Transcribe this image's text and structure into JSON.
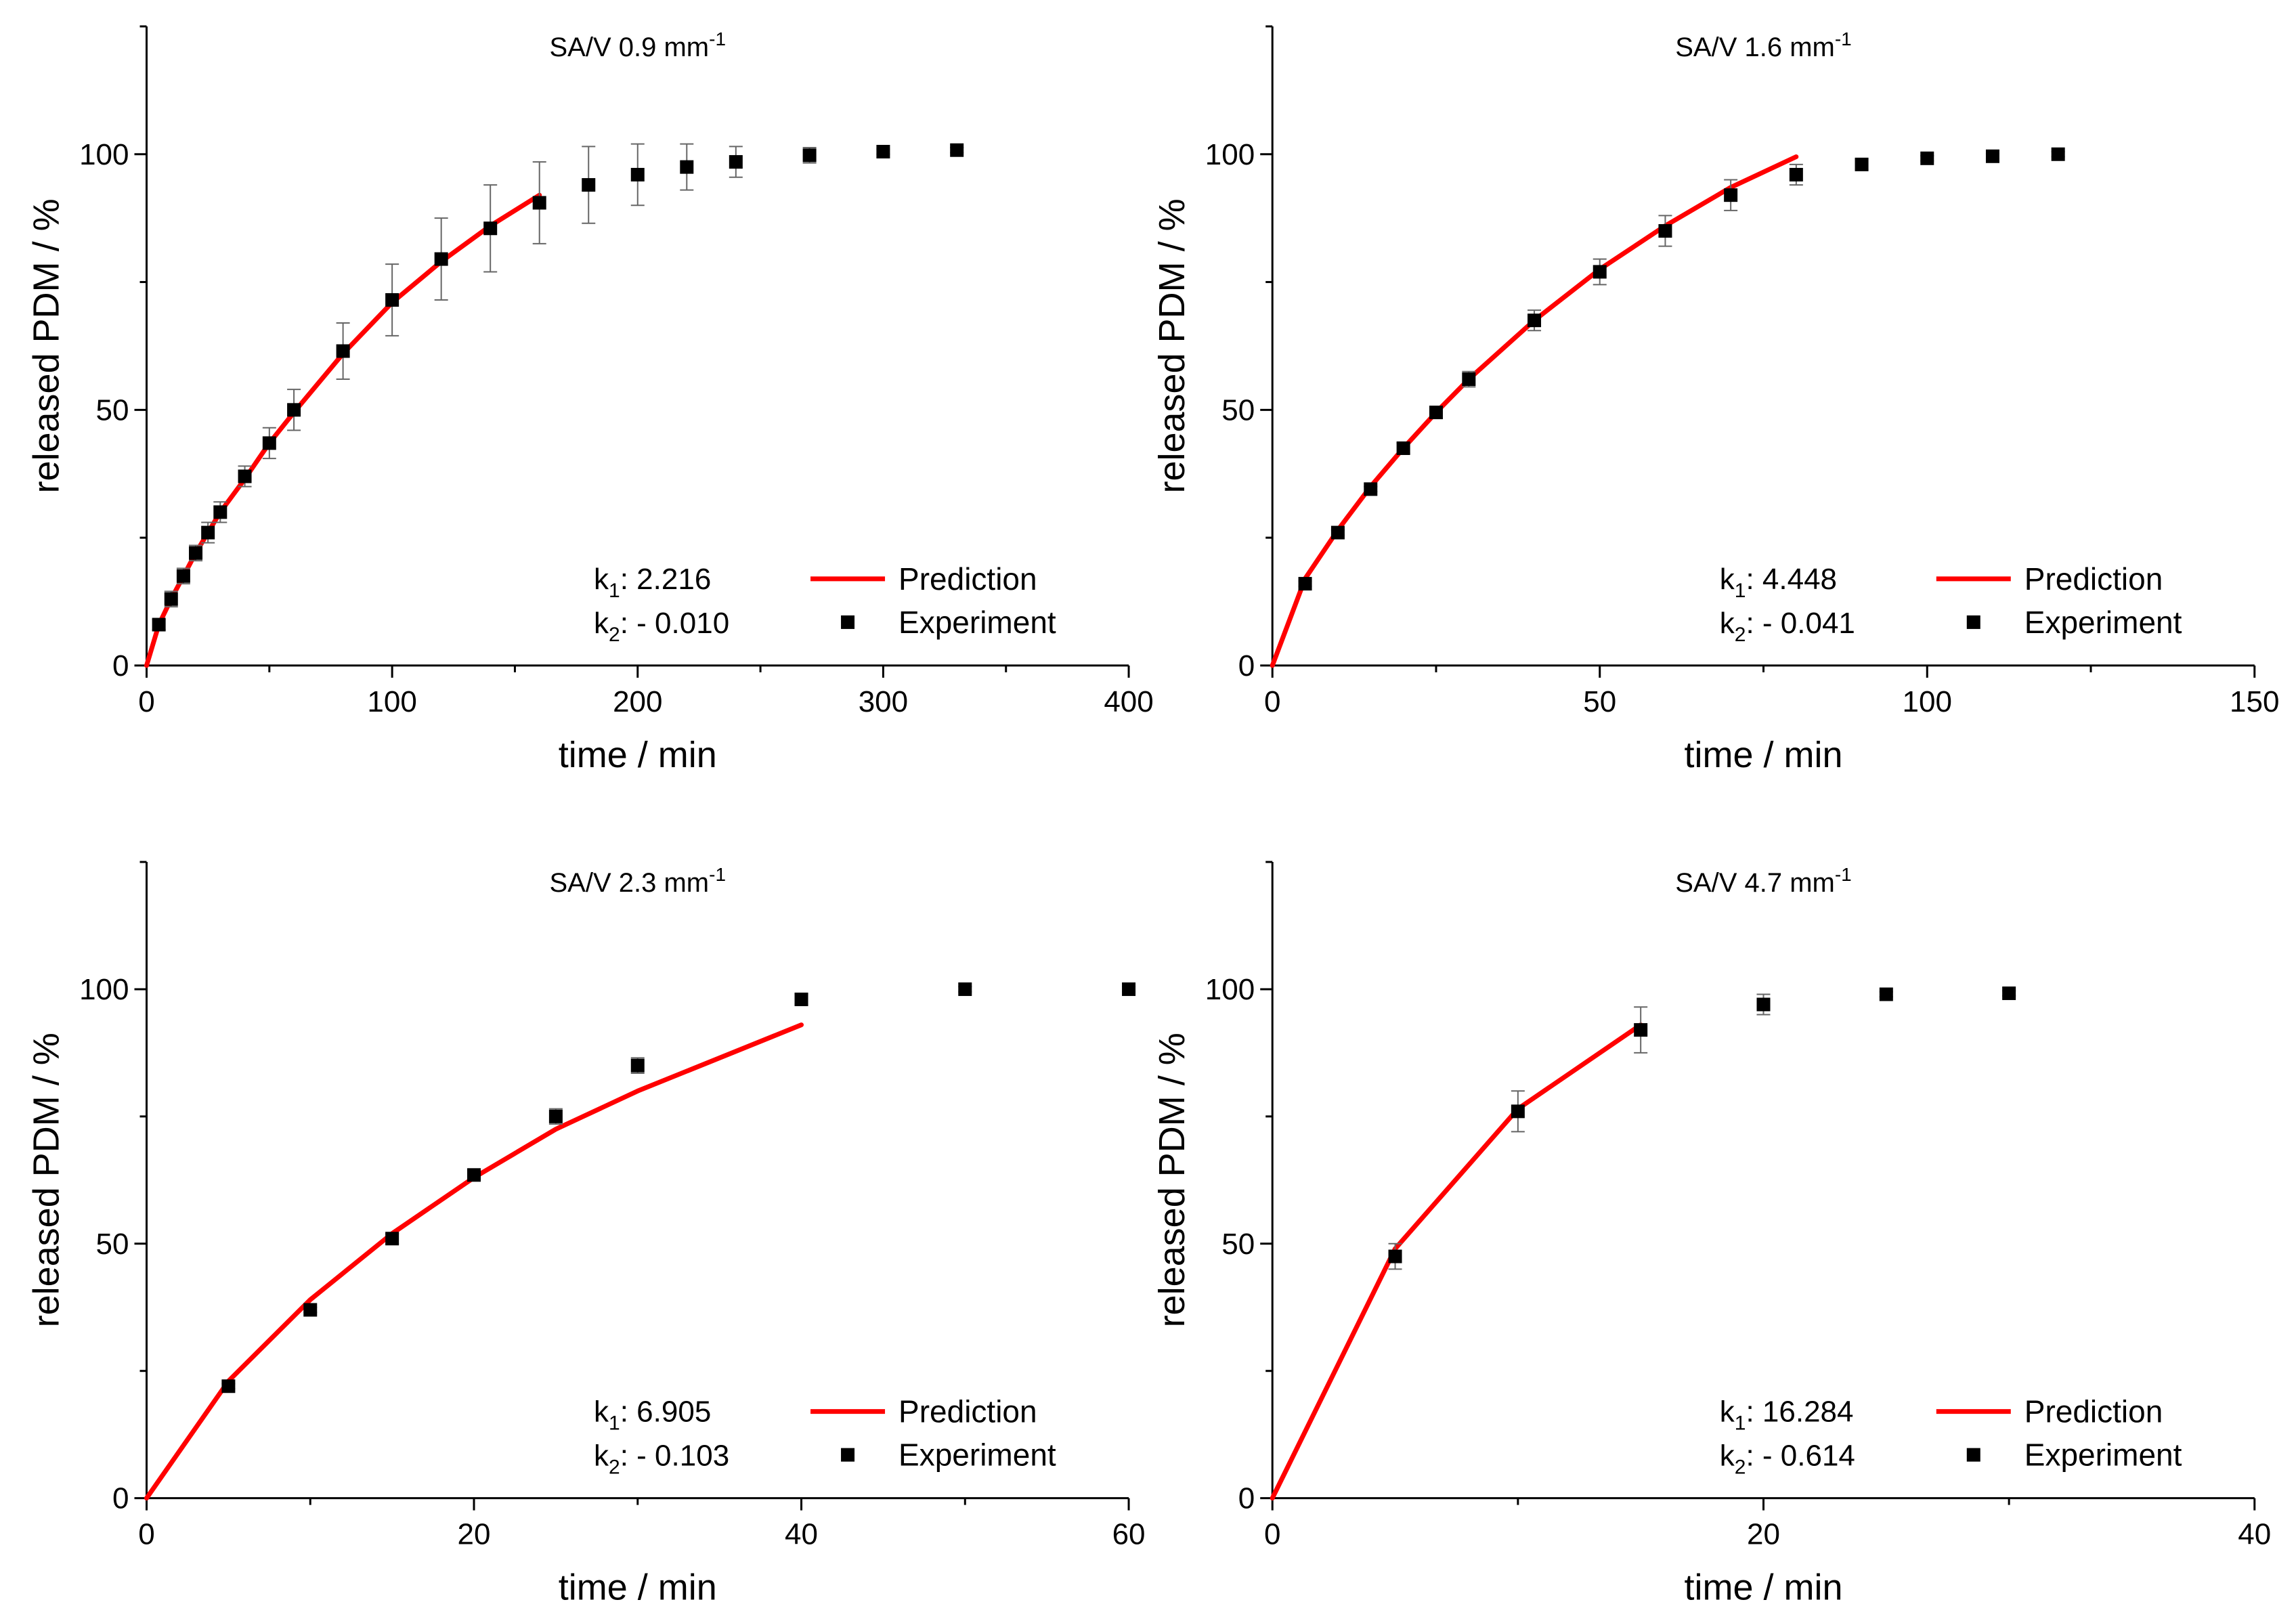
{
  "chart_data": [
    {
      "type": "scatter",
      "title": "SA/V 0.9 mm",
      "title_superscript": "-1",
      "xlabel": "time / min",
      "ylabel": "released PDM / %",
      "xlim": [
        0,
        400
      ],
      "ylim": [
        0,
        125
      ],
      "xticks": [
        0,
        100,
        200,
        300,
        400
      ],
      "xtick_labels": [
        "0",
        "100",
        "200",
        "300",
        "400"
      ],
      "yticks": [
        0,
        50,
        100
      ],
      "ytick_labels": [
        "0",
        "50",
        "100"
      ],
      "legend_position": "bottom-right",
      "legend": [
        {
          "label": "Prediction",
          "symbol": "line",
          "color": "#ff0000"
        },
        {
          "label": "Experiment",
          "symbol": "square",
          "color": "#000000"
        }
      ],
      "annotations": [
        {
          "label": "k",
          "sub": "1",
          "value": ": 2.216"
        },
        {
          "label": "k",
          "sub": "2",
          "value": ": - 0.010"
        }
      ],
      "series": [
        {
          "name": "Prediction",
          "kind": "line",
          "color": "#ff0000",
          "x": [
            0,
            5,
            10,
            15,
            20,
            25,
            30,
            40,
            50,
            60,
            80,
            100,
            120,
            140,
            160
          ],
          "y": [
            0,
            8,
            13,
            17.5,
            22,
            26,
            30,
            36.5,
            43.5,
            49.5,
            61,
            71,
            79,
            86,
            92
          ]
        },
        {
          "name": "Experiment",
          "kind": "markers",
          "color": "#000000",
          "x": [
            5,
            10,
            15,
            20,
            25,
            30,
            40,
            50,
            60,
            80,
            100,
            120,
            140,
            160,
            180,
            200,
            220,
            240,
            270,
            300,
            330
          ],
          "y": [
            8,
            13,
            17.5,
            22,
            26,
            30,
            37,
            43.5,
            50,
            61.5,
            71.5,
            79.5,
            85.5,
            90.5,
            94,
            96,
            97.5,
            98.5,
            99.8,
            100.5,
            100.8
          ],
          "err": [
            1,
            1.5,
            1.5,
            1.5,
            2,
            2,
            2,
            3,
            4,
            5.5,
            7,
            8,
            8.5,
            8,
            7.5,
            6,
            4.5,
            3,
            1.5,
            0.5,
            0.5
          ]
        }
      ]
    },
    {
      "type": "scatter",
      "title": "SA/V 1.6 mm",
      "title_superscript": "-1",
      "xlabel": "time / min",
      "ylabel": "released PDM / %",
      "xlim": [
        0,
        150
      ],
      "ylim": [
        0,
        125
      ],
      "xticks": [
        0,
        50,
        100,
        150
      ],
      "xtick_labels": [
        "0",
        "50",
        "100",
        "150"
      ],
      "yticks": [
        0,
        50,
        100
      ],
      "ytick_labels": [
        "0",
        "50",
        "100"
      ],
      "legend_position": "bottom-right",
      "legend": [
        {
          "label": "Prediction",
          "symbol": "line",
          "color": "#ff0000"
        },
        {
          "label": "Experiment",
          "symbol": "square",
          "color": "#000000"
        }
      ],
      "annotations": [
        {
          "label": "k",
          "sub": "1",
          "value": ": 4.448"
        },
        {
          "label": "k",
          "sub": "2",
          "value": ": - 0.041"
        }
      ],
      "series": [
        {
          "name": "Prediction",
          "kind": "line",
          "color": "#ff0000",
          "x": [
            0,
            5,
            10,
            15,
            20,
            25,
            30,
            40,
            50,
            60,
            70,
            80
          ],
          "y": [
            0,
            17,
            26.5,
            35,
            42.5,
            49.5,
            56,
            67.5,
            77.5,
            86,
            93.5,
            99.5
          ]
        },
        {
          "name": "Experiment",
          "kind": "markers",
          "color": "#000000",
          "x": [
            5,
            10,
            15,
            20,
            25,
            30,
            40,
            50,
            60,
            70,
            80,
            90,
            100,
            110,
            120
          ],
          "y": [
            16,
            26,
            34.5,
            42.5,
            49.5,
            56,
            67.5,
            77,
            85,
            92,
            96,
            98,
            99.2,
            99.6,
            100
          ],
          "err": [
            0.5,
            0.5,
            0.5,
            1,
            1,
            1.5,
            2,
            2.5,
            3,
            3,
            2,
            1,
            0.5,
            0.5,
            0.5
          ]
        }
      ]
    },
    {
      "type": "scatter",
      "title": "SA/V 2.3 mm",
      "title_superscript": "-1",
      "xlabel": "time / min",
      "ylabel": "released PDM / %",
      "xlim": [
        0,
        60
      ],
      "ylim": [
        0,
        125
      ],
      "xticks": [
        0,
        20,
        40,
        60
      ],
      "xtick_labels": [
        "0",
        "20",
        "40",
        "60"
      ],
      "yticks": [
        0,
        50,
        100
      ],
      "ytick_labels": [
        "0",
        "50",
        "100"
      ],
      "legend_position": "bottom-right",
      "legend": [
        {
          "label": "Prediction",
          "symbol": "line",
          "color": "#ff0000"
        },
        {
          "label": "Experiment",
          "symbol": "square",
          "color": "#000000"
        }
      ],
      "annotations": [
        {
          "label": "k",
          "sub": "1",
          "value": ": 6.905"
        },
        {
          "label": "k",
          "sub": "2",
          "value": ": - 0.103"
        }
      ],
      "series": [
        {
          "name": "Prediction",
          "kind": "line",
          "color": "#ff0000",
          "x": [
            0,
            5,
            10,
            15,
            20,
            25,
            30,
            40
          ],
          "y": [
            0,
            23,
            39,
            52,
            63,
            72.5,
            80,
            93
          ]
        },
        {
          "name": "Experiment",
          "kind": "markers",
          "color": "#000000",
          "x": [
            5,
            10,
            15,
            20,
            25,
            30,
            40,
            50,
            60
          ],
          "y": [
            22,
            37,
            51,
            63.5,
            75,
            85,
            98,
            100,
            100
          ],
          "err": [
            0.5,
            0.5,
            1,
            1,
            1.5,
            1.5,
            1,
            0.5,
            0.5
          ]
        }
      ]
    },
    {
      "type": "scatter",
      "title": "SA/V 4.7 mm",
      "title_superscript": "-1",
      "xlabel": "time / min",
      "ylabel": "released PDM / %",
      "xlim": [
        0,
        40
      ],
      "ylim": [
        0,
        125
      ],
      "xticks": [
        0,
        20,
        40
      ],
      "xtick_labels": [
        "0",
        "20",
        "40"
      ],
      "yticks": [
        0,
        50,
        100
      ],
      "ytick_labels": [
        "0",
        "50",
        "100"
      ],
      "legend_position": "bottom-right",
      "legend": [
        {
          "label": "Prediction",
          "symbol": "line",
          "color": "#ff0000"
        },
        {
          "label": "Experiment",
          "symbol": "square",
          "color": "#000000"
        }
      ],
      "annotations": [
        {
          "label": "k",
          "sub": "1",
          "value": ": 16.284"
        },
        {
          "label": "k",
          "sub": "2",
          "value": ": - 0.614"
        }
      ],
      "series": [
        {
          "name": "Prediction",
          "kind": "line",
          "color": "#ff0000",
          "x": [
            0,
            5,
            10,
            15
          ],
          "y": [
            0,
            49,
            76.5,
            93
          ]
        },
        {
          "name": "Experiment",
          "kind": "markers",
          "color": "#000000",
          "x": [
            5,
            10,
            15,
            20,
            25,
            30
          ],
          "y": [
            47.5,
            76,
            92,
            97,
            99,
            99.2
          ],
          "err": [
            2.5,
            4,
            4.5,
            2,
            0.5,
            0.5
          ]
        }
      ]
    }
  ]
}
